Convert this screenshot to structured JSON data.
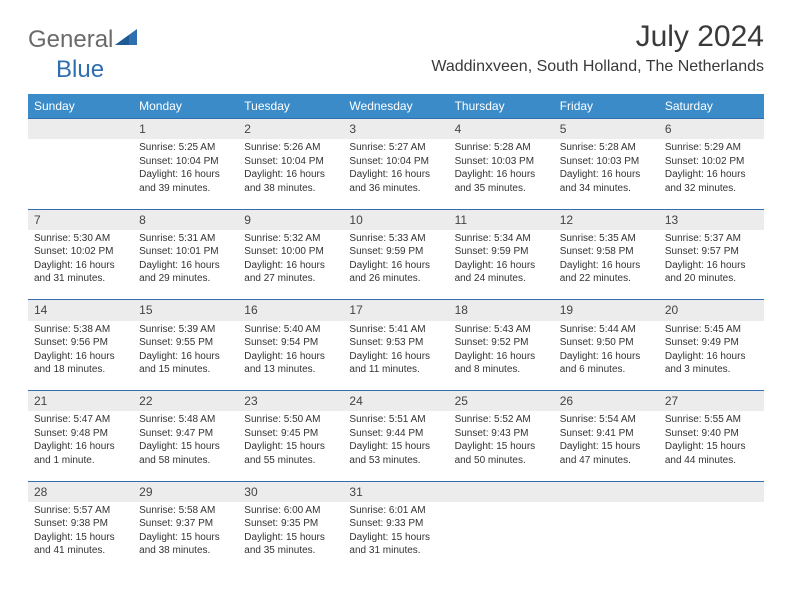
{
  "logo": {
    "text1": "General",
    "text2": "Blue"
  },
  "title": "July 2024",
  "location": "Waddinxveen, South Holland, The Netherlands",
  "colors": {
    "header_bg": "#3b8bc9",
    "header_text": "#ffffff",
    "daynum_bg": "#ececec",
    "border": "#2f6fb0",
    "logo_gray": "#6a6a6a",
    "logo_blue": "#2f6fb0"
  },
  "weekdays": [
    "Sunday",
    "Monday",
    "Tuesday",
    "Wednesday",
    "Thursday",
    "Friday",
    "Saturday"
  ],
  "weeks": [
    [
      null,
      {
        "n": "1",
        "sr": "Sunrise: 5:25 AM",
        "ss": "Sunset: 10:04 PM",
        "d1": "Daylight: 16 hours",
        "d2": "and 39 minutes."
      },
      {
        "n": "2",
        "sr": "Sunrise: 5:26 AM",
        "ss": "Sunset: 10:04 PM",
        "d1": "Daylight: 16 hours",
        "d2": "and 38 minutes."
      },
      {
        "n": "3",
        "sr": "Sunrise: 5:27 AM",
        "ss": "Sunset: 10:04 PM",
        "d1": "Daylight: 16 hours",
        "d2": "and 36 minutes."
      },
      {
        "n": "4",
        "sr": "Sunrise: 5:28 AM",
        "ss": "Sunset: 10:03 PM",
        "d1": "Daylight: 16 hours",
        "d2": "and 35 minutes."
      },
      {
        "n": "5",
        "sr": "Sunrise: 5:28 AM",
        "ss": "Sunset: 10:03 PM",
        "d1": "Daylight: 16 hours",
        "d2": "and 34 minutes."
      },
      {
        "n": "6",
        "sr": "Sunrise: 5:29 AM",
        "ss": "Sunset: 10:02 PM",
        "d1": "Daylight: 16 hours",
        "d2": "and 32 minutes."
      }
    ],
    [
      {
        "n": "7",
        "sr": "Sunrise: 5:30 AM",
        "ss": "Sunset: 10:02 PM",
        "d1": "Daylight: 16 hours",
        "d2": "and 31 minutes."
      },
      {
        "n": "8",
        "sr": "Sunrise: 5:31 AM",
        "ss": "Sunset: 10:01 PM",
        "d1": "Daylight: 16 hours",
        "d2": "and 29 minutes."
      },
      {
        "n": "9",
        "sr": "Sunrise: 5:32 AM",
        "ss": "Sunset: 10:00 PM",
        "d1": "Daylight: 16 hours",
        "d2": "and 27 minutes."
      },
      {
        "n": "10",
        "sr": "Sunrise: 5:33 AM",
        "ss": "Sunset: 9:59 PM",
        "d1": "Daylight: 16 hours",
        "d2": "and 26 minutes."
      },
      {
        "n": "11",
        "sr": "Sunrise: 5:34 AM",
        "ss": "Sunset: 9:59 PM",
        "d1": "Daylight: 16 hours",
        "d2": "and 24 minutes."
      },
      {
        "n": "12",
        "sr": "Sunrise: 5:35 AM",
        "ss": "Sunset: 9:58 PM",
        "d1": "Daylight: 16 hours",
        "d2": "and 22 minutes."
      },
      {
        "n": "13",
        "sr": "Sunrise: 5:37 AM",
        "ss": "Sunset: 9:57 PM",
        "d1": "Daylight: 16 hours",
        "d2": "and 20 minutes."
      }
    ],
    [
      {
        "n": "14",
        "sr": "Sunrise: 5:38 AM",
        "ss": "Sunset: 9:56 PM",
        "d1": "Daylight: 16 hours",
        "d2": "and 18 minutes."
      },
      {
        "n": "15",
        "sr": "Sunrise: 5:39 AM",
        "ss": "Sunset: 9:55 PM",
        "d1": "Daylight: 16 hours",
        "d2": "and 15 minutes."
      },
      {
        "n": "16",
        "sr": "Sunrise: 5:40 AM",
        "ss": "Sunset: 9:54 PM",
        "d1": "Daylight: 16 hours",
        "d2": "and 13 minutes."
      },
      {
        "n": "17",
        "sr": "Sunrise: 5:41 AM",
        "ss": "Sunset: 9:53 PM",
        "d1": "Daylight: 16 hours",
        "d2": "and 11 minutes."
      },
      {
        "n": "18",
        "sr": "Sunrise: 5:43 AM",
        "ss": "Sunset: 9:52 PM",
        "d1": "Daylight: 16 hours",
        "d2": "and 8 minutes."
      },
      {
        "n": "19",
        "sr": "Sunrise: 5:44 AM",
        "ss": "Sunset: 9:50 PM",
        "d1": "Daylight: 16 hours",
        "d2": "and 6 minutes."
      },
      {
        "n": "20",
        "sr": "Sunrise: 5:45 AM",
        "ss": "Sunset: 9:49 PM",
        "d1": "Daylight: 16 hours",
        "d2": "and 3 minutes."
      }
    ],
    [
      {
        "n": "21",
        "sr": "Sunrise: 5:47 AM",
        "ss": "Sunset: 9:48 PM",
        "d1": "Daylight: 16 hours",
        "d2": "and 1 minute."
      },
      {
        "n": "22",
        "sr": "Sunrise: 5:48 AM",
        "ss": "Sunset: 9:47 PM",
        "d1": "Daylight: 15 hours",
        "d2": "and 58 minutes."
      },
      {
        "n": "23",
        "sr": "Sunrise: 5:50 AM",
        "ss": "Sunset: 9:45 PM",
        "d1": "Daylight: 15 hours",
        "d2": "and 55 minutes."
      },
      {
        "n": "24",
        "sr": "Sunrise: 5:51 AM",
        "ss": "Sunset: 9:44 PM",
        "d1": "Daylight: 15 hours",
        "d2": "and 53 minutes."
      },
      {
        "n": "25",
        "sr": "Sunrise: 5:52 AM",
        "ss": "Sunset: 9:43 PM",
        "d1": "Daylight: 15 hours",
        "d2": "and 50 minutes."
      },
      {
        "n": "26",
        "sr": "Sunrise: 5:54 AM",
        "ss": "Sunset: 9:41 PM",
        "d1": "Daylight: 15 hours",
        "d2": "and 47 minutes."
      },
      {
        "n": "27",
        "sr": "Sunrise: 5:55 AM",
        "ss": "Sunset: 9:40 PM",
        "d1": "Daylight: 15 hours",
        "d2": "and 44 minutes."
      }
    ],
    [
      {
        "n": "28",
        "sr": "Sunrise: 5:57 AM",
        "ss": "Sunset: 9:38 PM",
        "d1": "Daylight: 15 hours",
        "d2": "and 41 minutes."
      },
      {
        "n": "29",
        "sr": "Sunrise: 5:58 AM",
        "ss": "Sunset: 9:37 PM",
        "d1": "Daylight: 15 hours",
        "d2": "and 38 minutes."
      },
      {
        "n": "30",
        "sr": "Sunrise: 6:00 AM",
        "ss": "Sunset: 9:35 PM",
        "d1": "Daylight: 15 hours",
        "d2": "and 35 minutes."
      },
      {
        "n": "31",
        "sr": "Sunrise: 6:01 AM",
        "ss": "Sunset: 9:33 PM",
        "d1": "Daylight: 15 hours",
        "d2": "and 31 minutes."
      },
      null,
      null,
      null
    ]
  ]
}
